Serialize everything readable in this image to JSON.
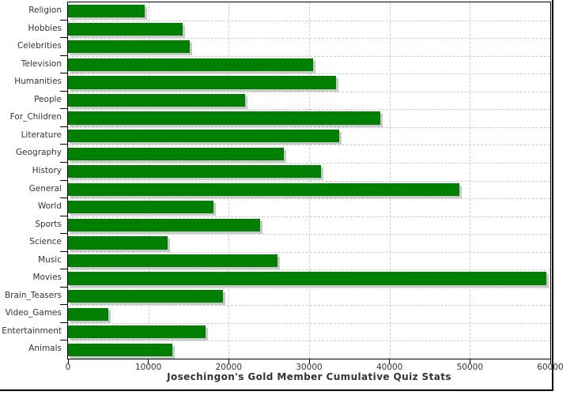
{
  "title": "Josechingon's Gold Member Cumulative Quiz Stats",
  "chart_data": {
    "type": "bar",
    "orientation": "horizontal",
    "title": "Josechingon's Gold Member Cumulative Quiz Stats",
    "xlabel": "",
    "ylabel": "",
    "categories": [
      "Religion",
      "Hobbies",
      "Celebrities",
      "Television",
      "Humanities",
      "People",
      "For_Children",
      "Literature",
      "Geography",
      "History",
      "General",
      "World",
      "Sports",
      "Science",
      "Music",
      "Movies",
      "Brain_Teasers",
      "Video_Games",
      "Entertainment",
      "Animals"
    ],
    "values": [
      9500,
      14300,
      15100,
      30500,
      33300,
      22000,
      38900,
      33700,
      26900,
      31500,
      48700,
      18100,
      23900,
      12400,
      26100,
      59500,
      19300,
      5000,
      17100,
      13000
    ],
    "xlim": [
      0,
      60000
    ],
    "x_ticks": [
      0,
      10000,
      20000,
      30000,
      40000,
      50000,
      60000
    ],
    "x_tick_labels": [
      "0",
      "10000",
      "20000",
      "30000",
      "40000",
      "50000",
      "60000"
    ],
    "grid": true,
    "legend": "none",
    "bar_color": "#008000",
    "shadow_color": "#c9c9c9",
    "grid_color": "#cccccc",
    "axis_color": "#000000",
    "text_color": "#333333"
  }
}
